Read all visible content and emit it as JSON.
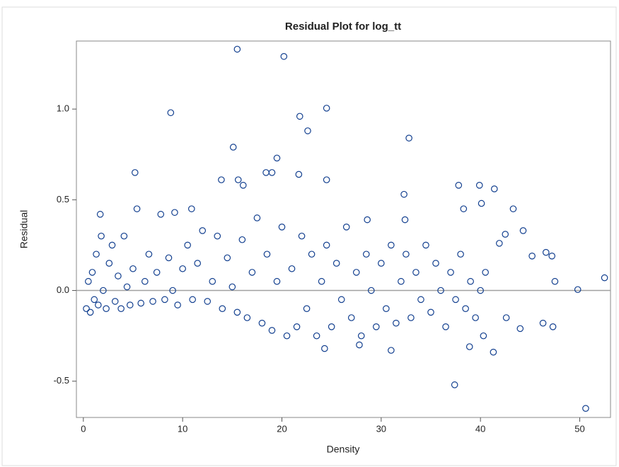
{
  "chart_data": {
    "type": "scatter",
    "title": "Residual Plot for log_tt",
    "x_label": "Density",
    "y_label": "Residual",
    "xlim": [
      -0.7,
      53.1
    ],
    "ylim": [
      -0.7,
      1.375
    ],
    "xticks": [
      0,
      10,
      20,
      30,
      40,
      50
    ],
    "yticks": [
      -0.5,
      {
        "value": 0,
        "label": "0.0"
      },
      0.5,
      {
        "value": 1,
        "label": "1.0"
      }
    ],
    "reference_line": 0,
    "reference_color": "#a0a0a0",
    "color": "#123f8f",
    "grid": false,
    "x": [
      0.3,
      0.5,
      0.7,
      0.9,
      1.1,
      1.3,
      1.5,
      1.8,
      2.0,
      2.3,
      2.6,
      2.9,
      3.2,
      3.5,
      3.8,
      4.1,
      4.4,
      4.7,
      5.0,
      5.4,
      5.8,
      6.2,
      6.6,
      7.0,
      7.4,
      7.8,
      8.2,
      8.6,
      9.0,
      9.5,
      10.0,
      10.5,
      11.0,
      11.5,
      12.0,
      12.5,
      13.0,
      13.5,
      14.0,
      14.5,
      15.0,
      15.5,
      16.0,
      16.5,
      17.0,
      17.5,
      18.0,
      18.5,
      19.0,
      19.5,
      20.0,
      20.5,
      21.0,
      21.5,
      22.0,
      22.5,
      23.0,
      23.5,
      24.0,
      24.5,
      25.0,
      25.5,
      26.0,
      26.5,
      27.0,
      27.5,
      28.0,
      28.5,
      29.0,
      29.5,
      30.0,
      30.5,
      31.0,
      31.5,
      32.0,
      32.5,
      33.0,
      33.5,
      34.0,
      34.5,
      35.0,
      35.5,
      36.0,
      36.5,
      37.0,
      37.5,
      38.0,
      38.5,
      39.0,
      39.5,
      40.0,
      40.5,
      15.5,
      20.2,
      8.8,
      24.5,
      21.8,
      22.6,
      32.8,
      15.1,
      19.5,
      5.2,
      37.4,
      50.6,
      52.5,
      49.8,
      47.5,
      41.3,
      38.9,
      27.8,
      31.0,
      24.3,
      40.3,
      42.6,
      44.0,
      46.3,
      47.3,
      45.2,
      46.6,
      47.2,
      43.3,
      42.5,
      39.9,
      37.8,
      41.4,
      38.3,
      40.1,
      44.3,
      41.9,
      32.3,
      32.4,
      28.6,
      18.4,
      19.0,
      21.7,
      24.5,
      15.6,
      13.9,
      16.1,
      10.9,
      1.7,
      9.2
    ],
    "values": [
      -0.1,
      0.05,
      -0.12,
      0.1,
      -0.05,
      0.2,
      -0.08,
      0.3,
      0.0,
      -0.1,
      0.15,
      0.25,
      -0.06,
      0.08,
      -0.1,
      0.3,
      0.02,
      -0.08,
      0.12,
      0.45,
      -0.07,
      0.05,
      0.2,
      -0.06,
      0.1,
      0.42,
      -0.05,
      0.18,
      0.0,
      -0.08,
      0.12,
      0.25,
      -0.05,
      0.15,
      0.33,
      -0.06,
      0.05,
      0.3,
      -0.1,
      0.18,
      0.02,
      -0.12,
      0.28,
      -0.15,
      0.1,
      0.4,
      -0.18,
      0.2,
      -0.22,
      0.05,
      0.35,
      -0.25,
      0.12,
      -0.2,
      0.3,
      -0.1,
      0.2,
      -0.25,
      0.05,
      0.25,
      -0.2,
      0.15,
      -0.05,
      0.35,
      -0.15,
      0.1,
      -0.25,
      0.2,
      0.0,
      -0.2,
      0.15,
      -0.1,
      0.25,
      -0.18,
      0.05,
      0.2,
      -0.15,
      0.1,
      -0.05,
      0.25,
      -0.12,
      0.15,
      0.0,
      -0.2,
      0.1,
      -0.05,
      0.2,
      -0.1,
      0.05,
      -0.15,
      0.0,
      0.1,
      1.33,
      1.29,
      0.98,
      1.005,
      0.96,
      0.88,
      0.84,
      0.79,
      0.73,
      0.65,
      -0.52,
      -0.65,
      0.07,
      0.005,
      0.05,
      -0.34,
      -0.31,
      -0.3,
      -0.33,
      -0.32,
      -0.25,
      -0.15,
      -0.21,
      -0.18,
      -0.2,
      0.19,
      0.21,
      0.19,
      0.45,
      0.31,
      0.58,
      0.58,
      0.56,
      0.45,
      0.48,
      0.33,
      0.26,
      0.53,
      0.39,
      0.39,
      0.65,
      0.65,
      0.64,
      0.61,
      0.61,
      0.61,
      0.58,
      0.45,
      0.42,
      0.43
    ]
  }
}
